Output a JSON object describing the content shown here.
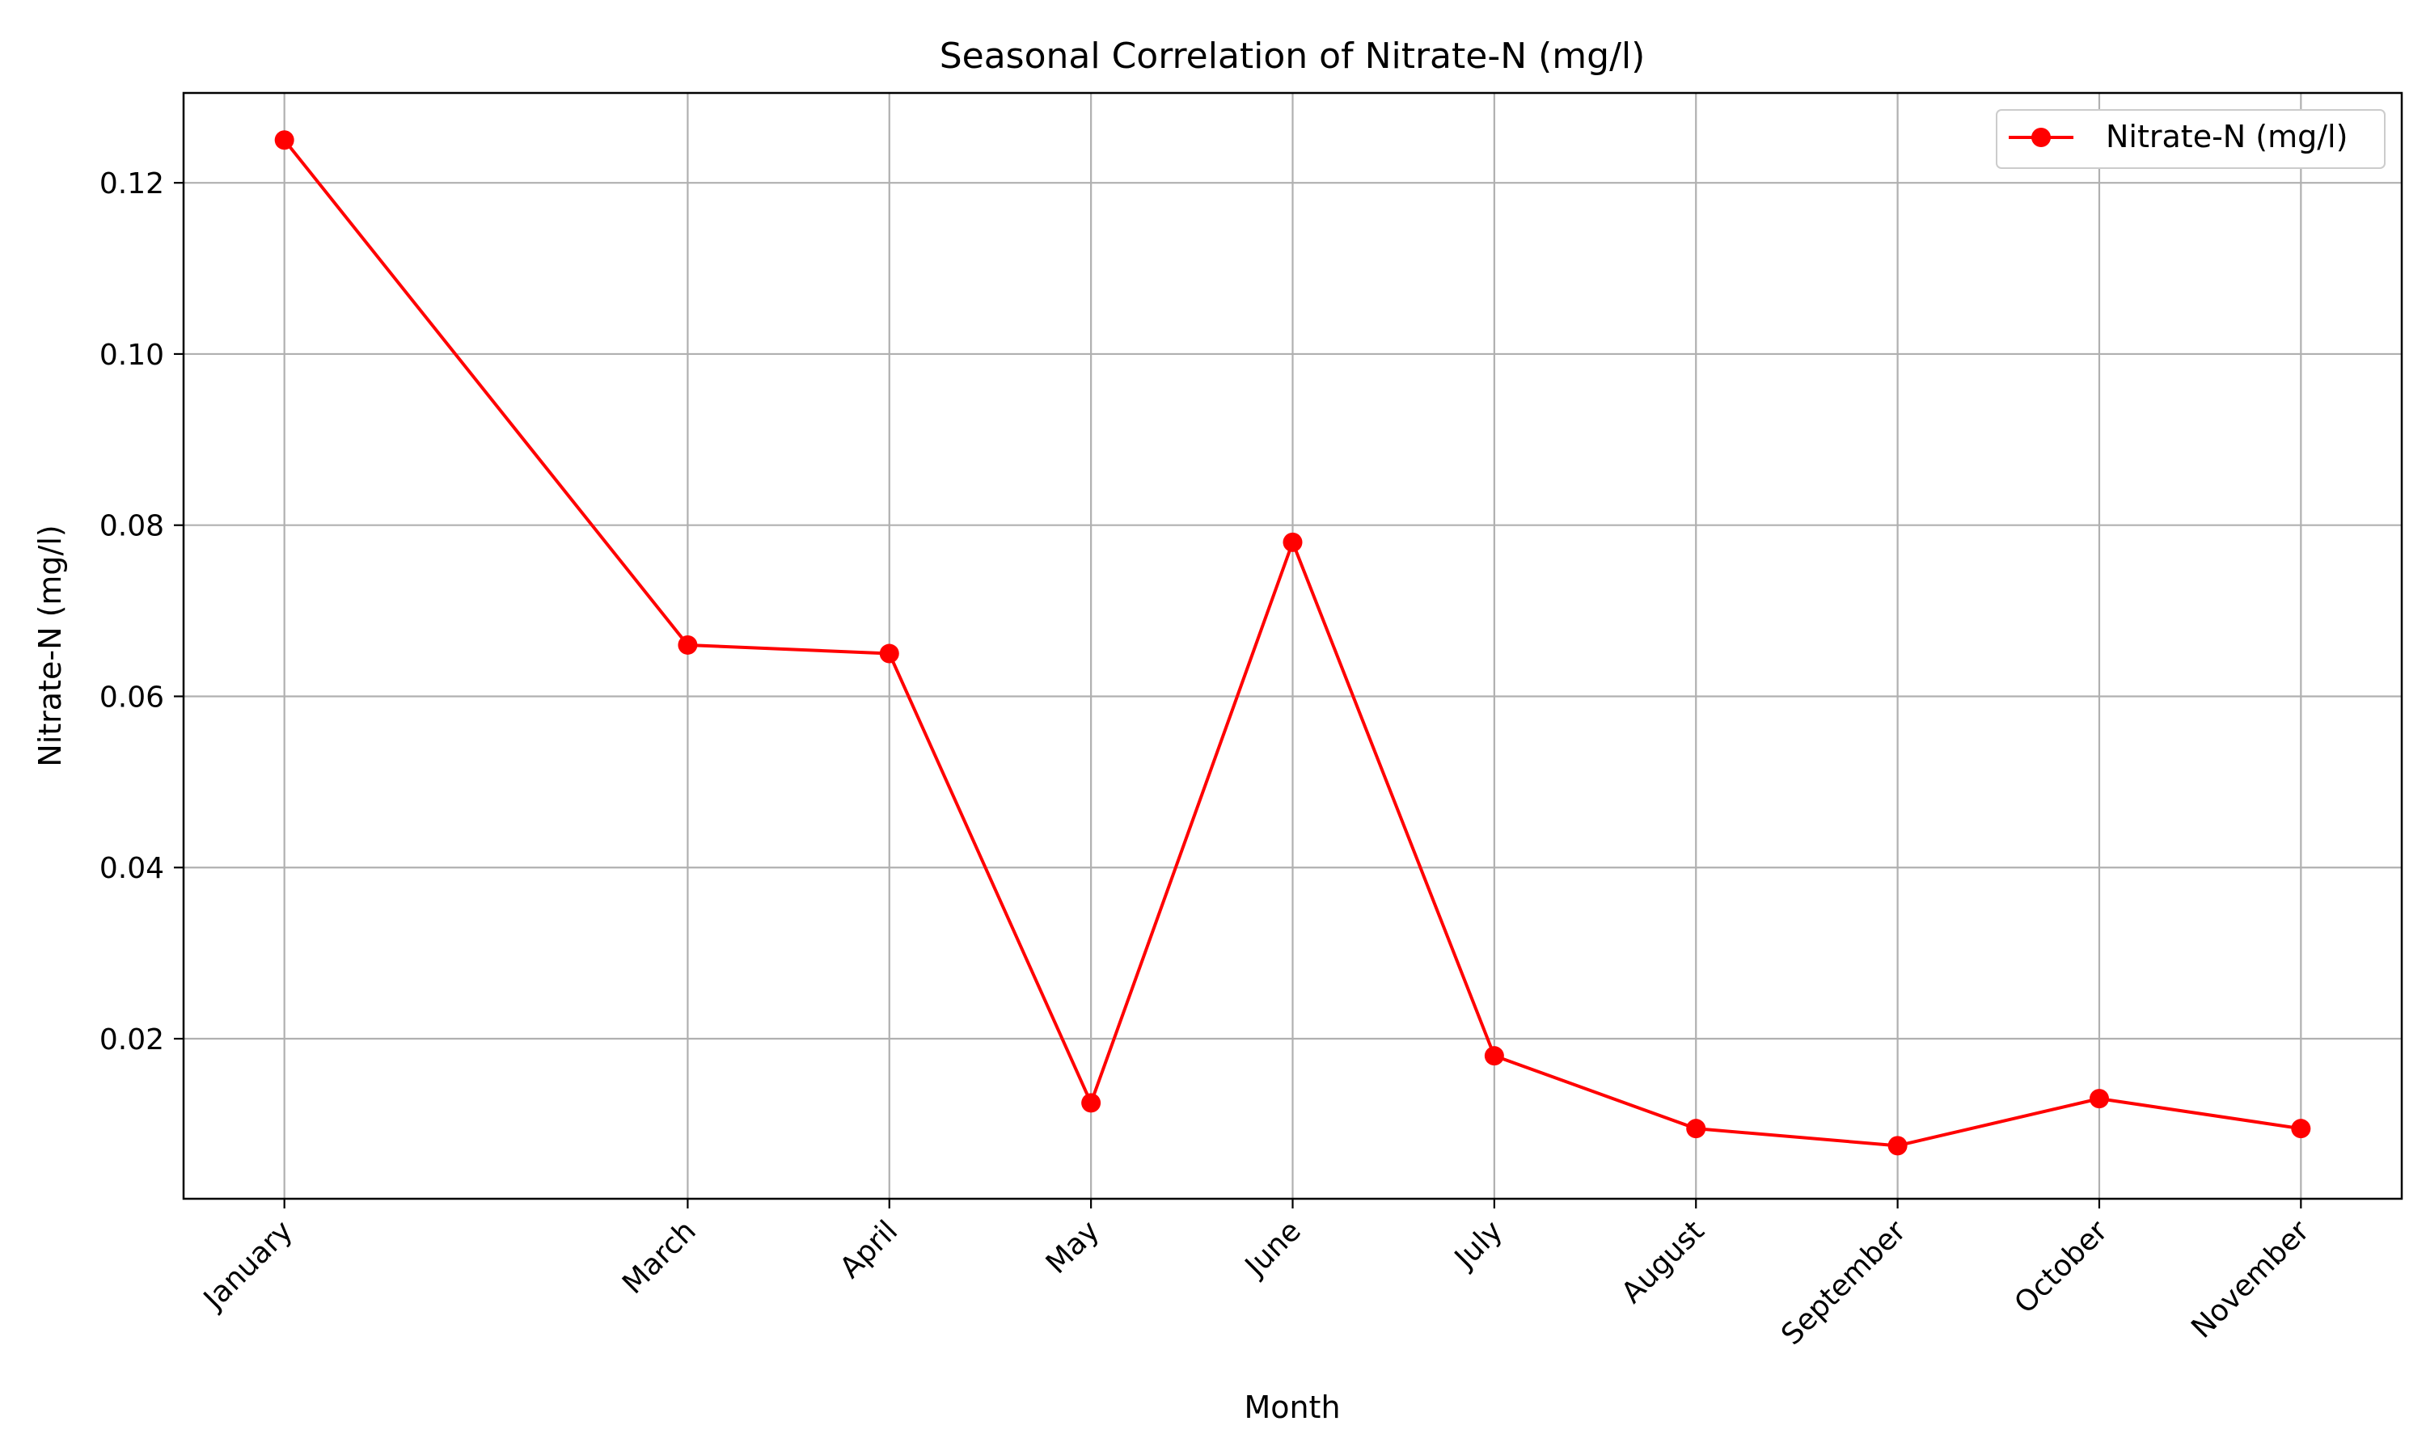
{
  "chart_data": {
    "type": "line",
    "title": "Seasonal Correlation of Nitrate-N (mg/l)",
    "xlabel": "Month",
    "ylabel": "Nitrate-N (mg/l)",
    "x_positions": [
      1,
      3,
      4,
      5,
      6,
      7,
      8,
      9,
      10,
      11
    ],
    "categories": [
      "January",
      "March",
      "April",
      "May",
      "June",
      "July",
      "August",
      "September",
      "October",
      "November"
    ],
    "series": [
      {
        "name": "Nitrate-N (mg/l)",
        "values": [
          0.125,
          0.066,
          0.065,
          0.0125,
          0.078,
          0.018,
          0.0095,
          0.0075,
          0.013,
          0.0095
        ],
        "color": "#ff0000"
      }
    ],
    "xlim": [
      0.5,
      11.5
    ],
    "ylim": [
      0.0013,
      0.1305
    ],
    "yticks": [
      "0.02",
      "0.04",
      "0.06",
      "0.08",
      "0.10",
      "0.12"
    ],
    "grid": true,
    "legend": "top-right"
  }
}
